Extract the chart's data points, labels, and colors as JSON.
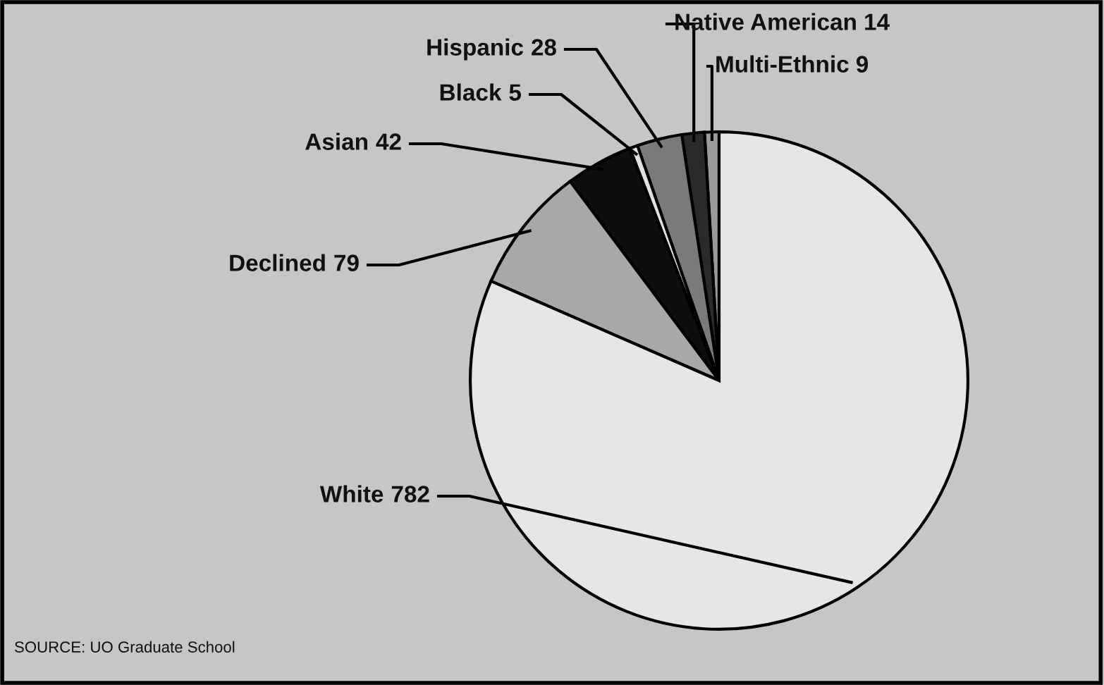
{
  "chart_data": {
    "type": "pie",
    "categories": [
      "Multi-Ethnic",
      "Native American",
      "Hispanic",
      "Black",
      "Asian",
      "Declined",
      "White"
    ],
    "values": [
      9,
      14,
      28,
      5,
      42,
      79,
      782
    ],
    "colors": [
      "#9a9a9a",
      "#2a2a2a",
      "#7a7a7a",
      "#e0e0e0",
      "#0e0e0e",
      "#a8a8a8",
      "#e6e6e6"
    ],
    "data_labels": true,
    "annotations": [
      "SOURCE: UO Graduate School"
    ]
  }
}
